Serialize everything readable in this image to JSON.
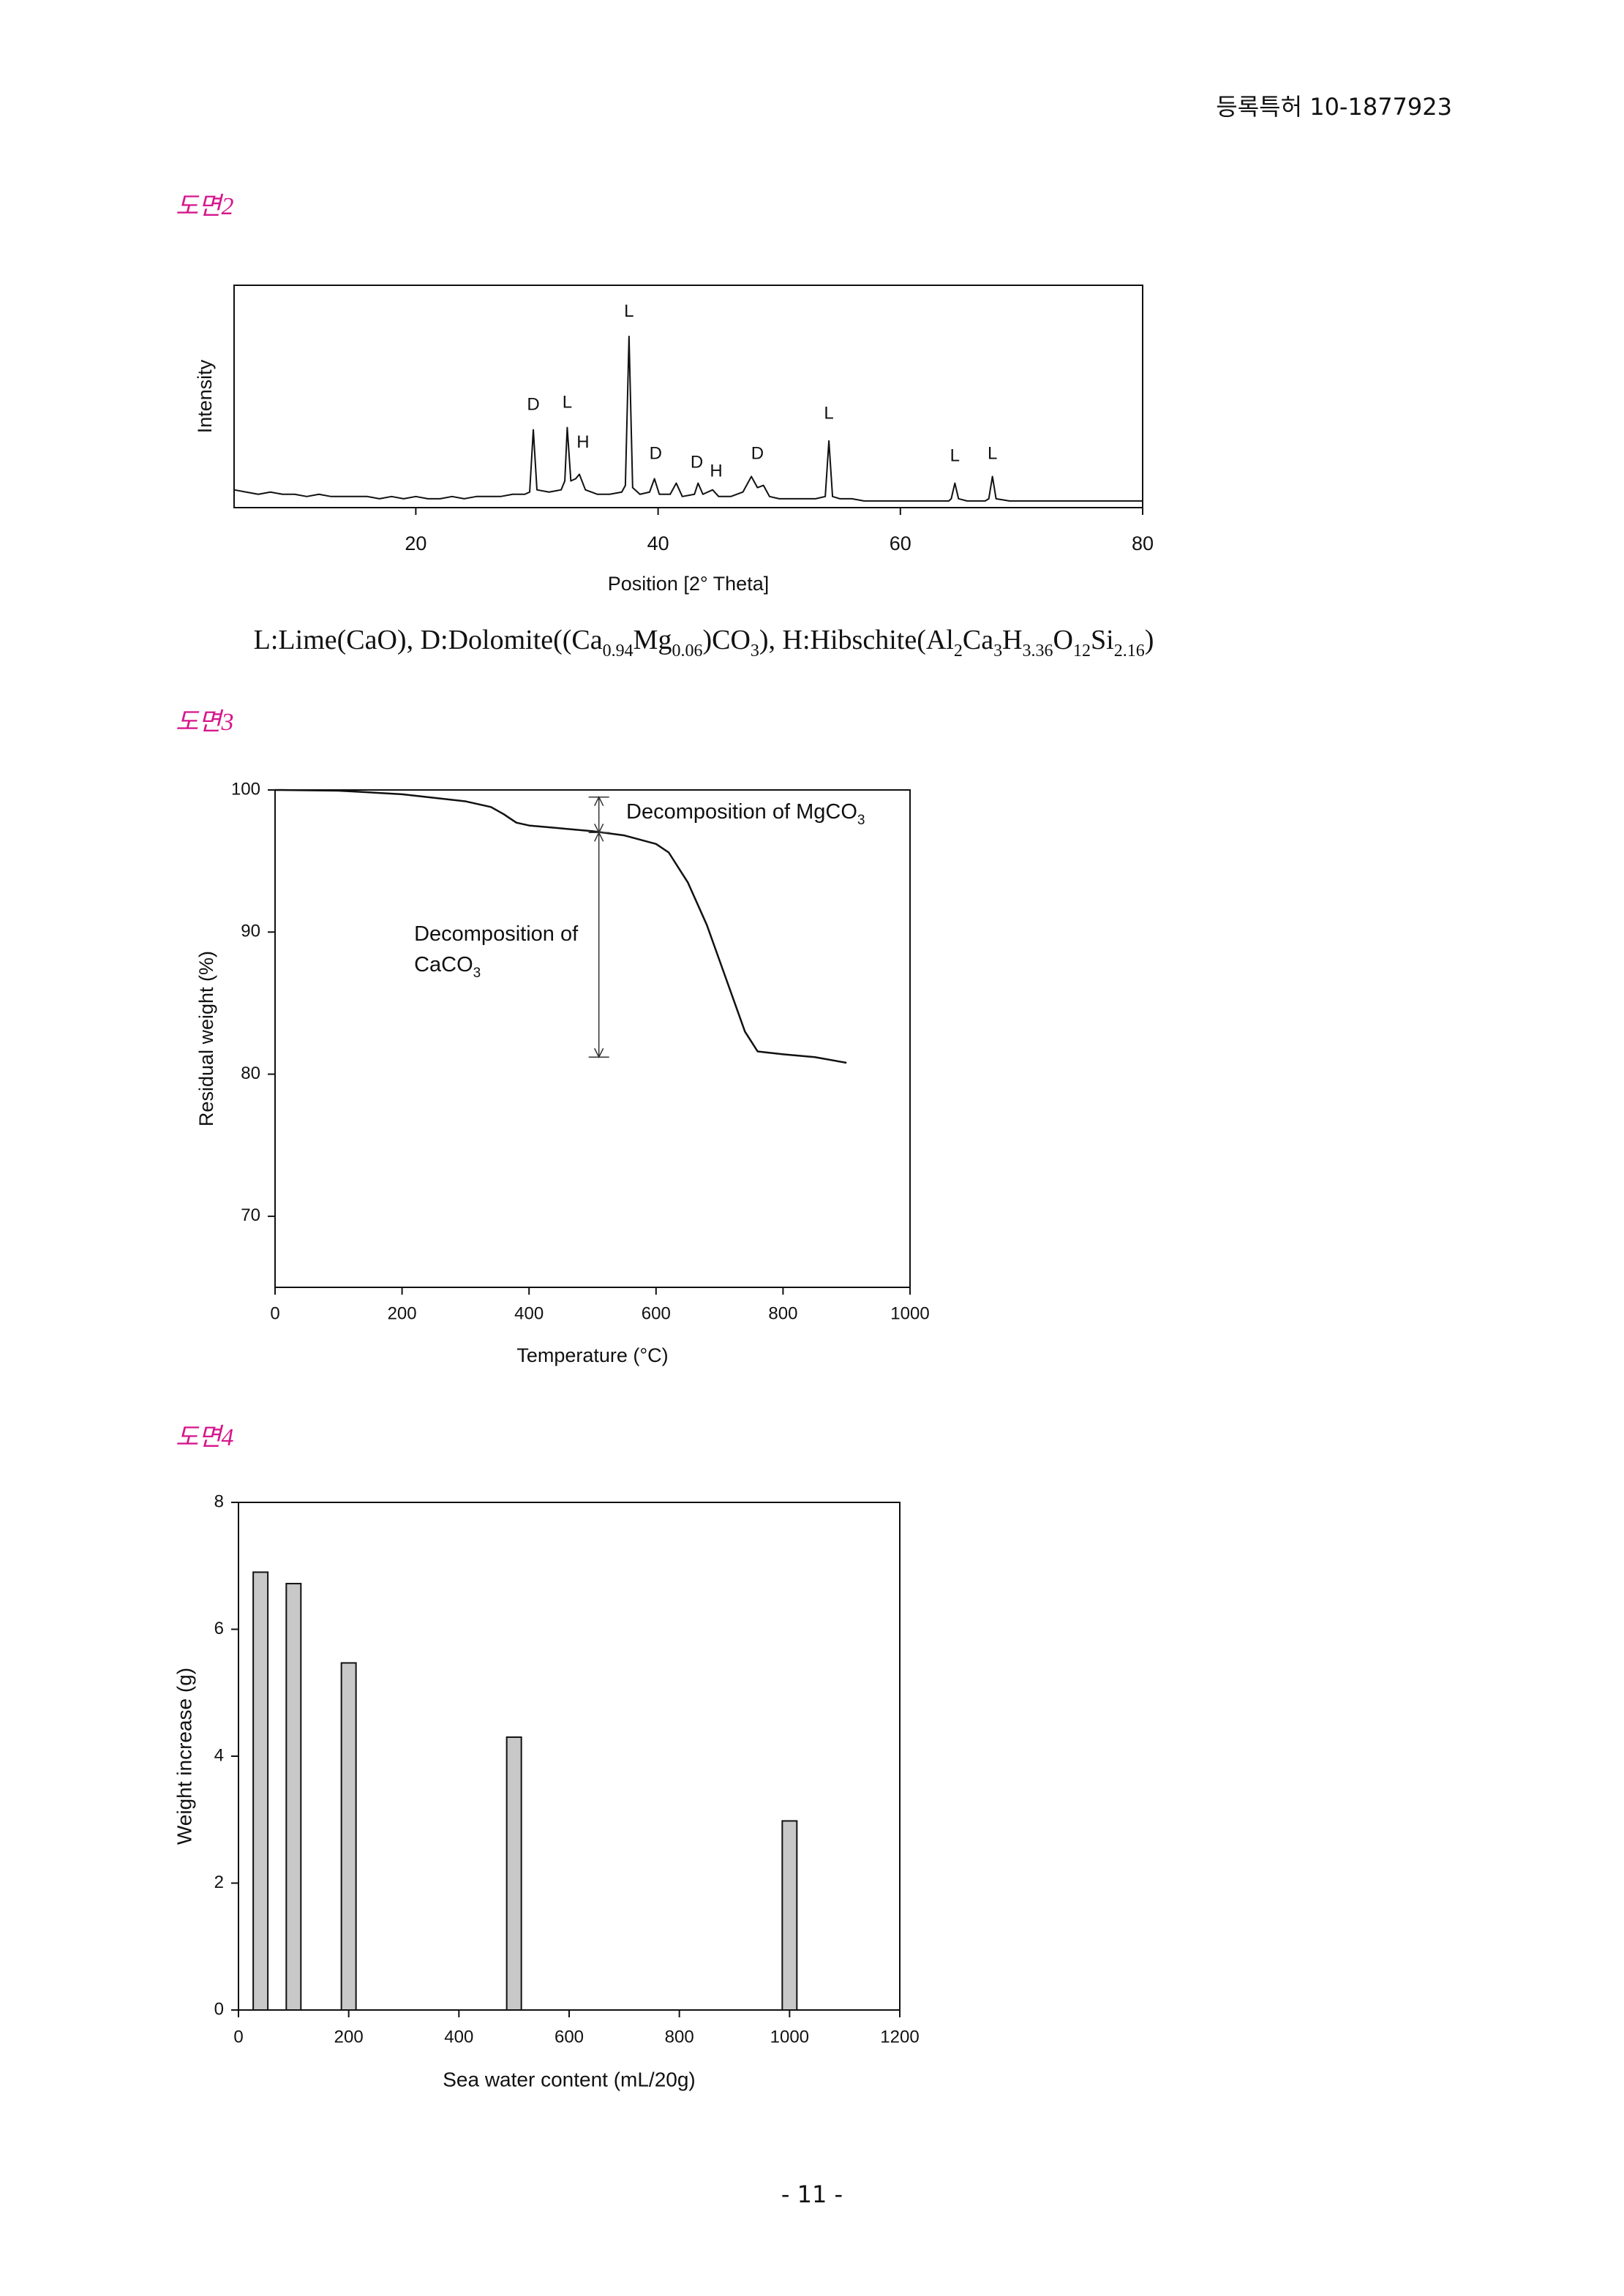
{
  "header": "등록특허 10-1877923",
  "figure_labels": [
    "도면2",
    "도면3",
    "도면4"
  ],
  "footer": "- 11 -",
  "chart_data": [
    {
      "type": "line",
      "x_label": "Position [2° Theta]",
      "y_label": "Intensity",
      "x": [
        5,
        6,
        7,
        8,
        9,
        10,
        11,
        12,
        13,
        14,
        15,
        16,
        17,
        18,
        19,
        20,
        21,
        22,
        23,
        24,
        25,
        26,
        27,
        28,
        29,
        29.4,
        29.7,
        30.0,
        31,
        32,
        32.3,
        32.5,
        32.8,
        33.2,
        33.5,
        34,
        35,
        36,
        37,
        37.3,
        37.6,
        37.9,
        38.5,
        39.3,
        39.7,
        40.1,
        41,
        41.5,
        42,
        43,
        43.3,
        43.7,
        44.5,
        45,
        46,
        47,
        47.7,
        48.2,
        48.7,
        49.2,
        50,
        51,
        52,
        53,
        53.8,
        54.1,
        54.4,
        55,
        56,
        57,
        58,
        59,
        60,
        61,
        62,
        63,
        64,
        64.2,
        64.5,
        64.8,
        65.5,
        66,
        67,
        67.3,
        67.6,
        67.9,
        69,
        70,
        71,
        72,
        73,
        74,
        75,
        76,
        77,
        78,
        79,
        80
      ],
      "values": [
        8,
        7,
        6,
        7,
        6,
        6,
        5,
        6,
        5,
        5,
        5,
        5,
        4,
        5,
        4,
        5,
        4,
        4,
        5,
        4,
        5,
        5,
        5,
        6,
        6,
        7,
        35,
        8,
        7,
        8,
        12,
        36,
        12,
        13,
        15,
        8,
        6,
        6,
        7,
        10,
        77,
        9,
        6,
        7,
        13,
        6,
        6,
        11,
        5,
        6,
        11,
        6,
        8,
        5,
        5,
        7,
        14,
        9,
        10,
        5,
        4,
        4,
        4,
        4,
        5,
        30,
        5,
        4,
        4,
        3,
        3,
        3,
        3,
        3,
        3,
        3,
        3,
        4,
        11,
        4,
        3,
        3,
        3,
        4,
        14,
        4,
        3,
        3,
        3,
        3,
        3,
        3,
        3,
        3,
        3,
        3,
        3,
        3
      ],
      "color": "#111111",
      "xlim": [
        5,
        80
      ],
      "xticks": [
        20,
        40,
        60,
        80
      ],
      "ylim": [
        0,
        100
      ],
      "annotations": [
        {
          "text": "D",
          "x": 29.7,
          "y": 46
        },
        {
          "text": "L",
          "x": 32.5,
          "y": 47
        },
        {
          "text": "H",
          "x": 33.8,
          "y": 29
        },
        {
          "text": "L",
          "x": 37.6,
          "y": 88
        },
        {
          "text": "D",
          "x": 39.8,
          "y": 24
        },
        {
          "text": "D",
          "x": 43.2,
          "y": 20
        },
        {
          "text": "H",
          "x": 44.8,
          "y": 16
        },
        {
          "text": "D",
          "x": 48.2,
          "y": 24
        },
        {
          "text": "L",
          "x": 54.1,
          "y": 42
        },
        {
          "text": "L",
          "x": 64.5,
          "y": 23
        },
        {
          "text": "L",
          "x": 67.6,
          "y": 24
        }
      ],
      "caption": [
        "L:Lime(CaO), D:Dolomite((Ca",
        "0.94",
        "Mg",
        "0.06",
        ")CO",
        "3",
        "), H:Hibschite(Al",
        "2",
        "Ca",
        "3",
        "H",
        "3.36",
        "O",
        "12",
        "Si",
        "2.16",
        ")"
      ]
    },
    {
      "type": "line",
      "x_label": "Temperature (°C)",
      "y_label": "Residual weight (%)",
      "x": [
        0,
        100,
        200,
        300,
        340,
        360,
        380,
        400,
        450,
        500,
        550,
        600,
        620,
        650,
        680,
        700,
        720,
        740,
        760,
        800,
        850,
        900
      ],
      "values": [
        100,
        99.95,
        99.7,
        99.2,
        98.8,
        98.3,
        97.7,
        97.5,
        97.3,
        97.1,
        96.8,
        96.2,
        95.6,
        93.5,
        90.5,
        88,
        85.5,
        83,
        81.6,
        81.4,
        81.2,
        80.8
      ],
      "color": "#111111",
      "xlim": [
        0,
        1000
      ],
      "xticks": [
        0,
        200,
        400,
        600,
        800,
        1000
      ],
      "ylim": [
        65,
        100
      ],
      "yticks": [
        70,
        80,
        90,
        100
      ],
      "annotations": [
        {
          "lines": [
            [
              "Decomposition of MgCO",
              "3"
            ]
          ],
          "x": 553,
          "y": 98.4
        },
        {
          "lines": [
            [
              "Decomposition of"
            ],
            [
              "CaCO",
              "3"
            ]
          ],
          "x": 219,
          "y": 89.8
        }
      ],
      "arrows": [
        {
          "x": 510,
          "y": [
            99.5,
            97.0
          ]
        },
        {
          "x": 510,
          "y": [
            97.0,
            81.2
          ]
        }
      ]
    },
    {
      "type": "bar",
      "x_label": "Sea water content (mL/20g)",
      "y_label": "Weight increase (g)",
      "x": [
        40,
        100,
        200,
        500,
        1000
      ],
      "values": [
        6.9,
        6.72,
        5.47,
        4.3,
        2.98
      ],
      "color": "#c8c8c8",
      "xlim": [
        0,
        1200
      ],
      "xticks": [
        0,
        200,
        400,
        600,
        800,
        1000,
        1200
      ],
      "ylim": [
        0,
        8
      ],
      "yticks": [
        0,
        2,
        4,
        6,
        8
      ]
    }
  ]
}
